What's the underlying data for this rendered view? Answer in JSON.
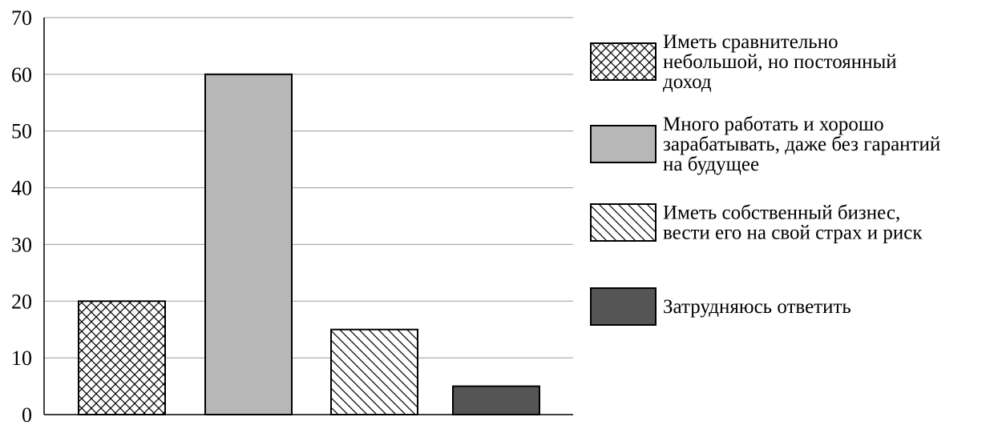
{
  "chart_data": {
    "type": "bar",
    "title": "",
    "xlabel": "",
    "ylabel": "",
    "ylim": [
      0,
      70
    ],
    "yticks": [
      0,
      10,
      20,
      30,
      40,
      50,
      60,
      70
    ],
    "grid": true,
    "legend_position": "right",
    "categories": [
      "Иметь сравнительно небольшой, но постоянный доход",
      "Много работать и хорошо зарабатывать, даже без гарантий на будущее",
      "Иметь собственный бизнес, вести его на свой страх и риск",
      "Затрудняюсь ответить"
    ],
    "values": [
      20,
      60,
      15,
      5
    ],
    "bars": [
      {
        "value": 20,
        "pattern": "crosshatch",
        "color": "#ffffff"
      },
      {
        "value": 60,
        "pattern": "solid",
        "color": "#b7b7b7"
      },
      {
        "value": 15,
        "pattern": "diagonal",
        "color": "#ffffff"
      },
      {
        "value": 5,
        "pattern": "solid",
        "color": "#555555"
      }
    ],
    "legend": [
      {
        "lines": [
          "Иметь сравнительно",
          "небольшой, но постоянный",
          "доход"
        ],
        "pattern": "crosshatch",
        "color": "#ffffff"
      },
      {
        "lines": [
          "Много работать и хорошо",
          "зарабатывать, даже без гарантий",
          "на будущее"
        ],
        "pattern": "solid",
        "color": "#b7b7b7"
      },
      {
        "lines": [
          "Иметь собственный бизнес,",
          "вести его на свой страх и риск"
        ],
        "pattern": "diagonal",
        "color": "#ffffff"
      },
      {
        "lines": [
          "Затрудняюсь ответить"
        ],
        "pattern": "solid",
        "color": "#555555"
      }
    ]
  }
}
